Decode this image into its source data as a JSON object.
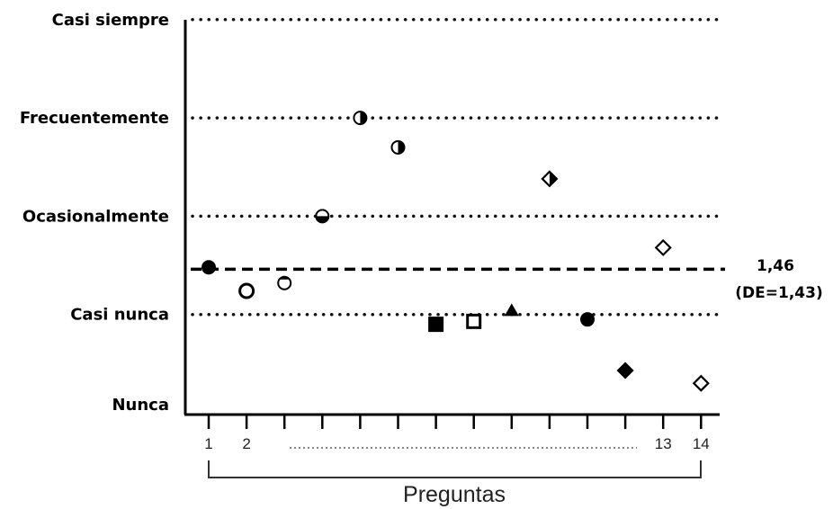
{
  "chart_data": {
    "type": "scatter",
    "title": "",
    "xlabel": "Preguntas",
    "ylabel": "",
    "y_categories": [
      "Nunca",
      "Casi nunca",
      "Ocasionalmente",
      "Frecuentemente",
      "Casi siempre"
    ],
    "ylim": [
      0,
      4
    ],
    "x_tick_labels": [
      {
        "x": 1,
        "label": "1"
      },
      {
        "x": 2,
        "label": "2"
      },
      {
        "x": 13,
        "label": "13"
      },
      {
        "x": 14,
        "label": "14"
      }
    ],
    "x_ellipsis": true,
    "points": [
      {
        "x": 1,
        "y": 1.48,
        "marker": "circle-filled"
      },
      {
        "x": 2,
        "y": 1.24,
        "marker": "circle-open"
      },
      {
        "x": 3,
        "y": 1.32,
        "marker": "circle-open-top-filled"
      },
      {
        "x": 4,
        "y": 2.0,
        "marker": "circle-bottom-filled"
      },
      {
        "x": 5,
        "y": 3.0,
        "marker": "circle-right-filled"
      },
      {
        "x": 6,
        "y": 2.7,
        "marker": "circle-right-filled"
      },
      {
        "x": 7,
        "y": 0.9,
        "marker": "square-filled"
      },
      {
        "x": 8,
        "y": 0.93,
        "marker": "square-open"
      },
      {
        "x": 9,
        "y": 1.04,
        "marker": "triangle-filled"
      },
      {
        "x": 10,
        "y": 2.38,
        "marker": "diamond-right-filled"
      },
      {
        "x": 11,
        "y": 0.95,
        "marker": "circle-filled"
      },
      {
        "x": 12,
        "y": 0.43,
        "marker": "diamond-filled"
      },
      {
        "x": 13,
        "y": 1.68,
        "marker": "diamond-open"
      },
      {
        "x": 14,
        "y": 0.3,
        "marker": "diamond-open"
      }
    ],
    "reference_line": {
      "y": 1.46,
      "style": "dashed",
      "label_line1": "1,46",
      "label_line2": "(DE=1,43)"
    },
    "grid": "dotted horizontal at each category",
    "bracket_label": "Preguntas"
  }
}
